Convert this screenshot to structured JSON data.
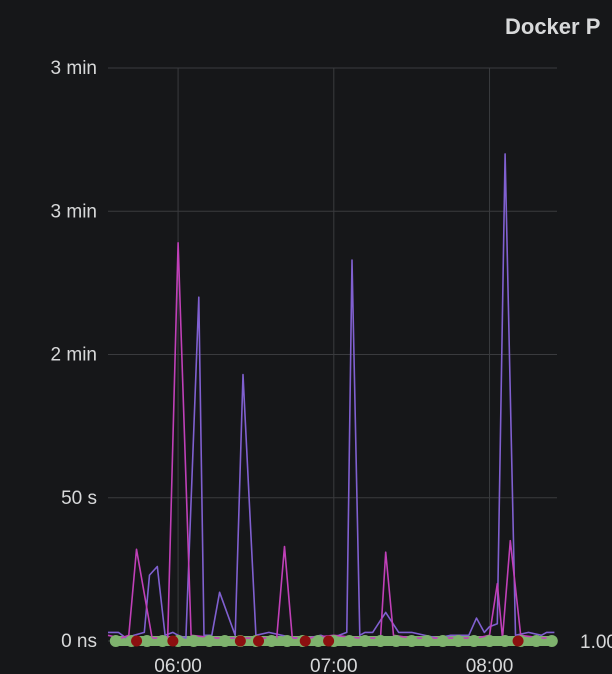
{
  "panel": {
    "title": "Docker P"
  },
  "chart_data": {
    "type": "line",
    "title": "Docker P",
    "xlabel": "",
    "ylabel": "",
    "x_ticks": [
      "06:00",
      "07:00",
      "08:00"
    ],
    "y_tick_labels": [
      "0 ns",
      "50 s",
      "2 min",
      "3 min",
      "3 min"
    ],
    "y_ticks_seconds": [
      0,
      50,
      100,
      150,
      200
    ],
    "ylim": [
      0,
      200
    ],
    "x_range_minutes": [
      "05:33",
      "08:26"
    ],
    "right_axis_label": "1.00",
    "grid": true,
    "series": [
      {
        "color": "#8060d0",
        "x": [
          "05:33",
          "05:37",
          "05:40",
          "05:43",
          "05:47",
          "05:49",
          "05:52",
          "05:55",
          "05:58",
          "06:00",
          "06:03",
          "06:08",
          "06:10",
          "06:13",
          "06:16",
          "06:22",
          "06:25",
          "06:30",
          "06:35",
          "06:40",
          "06:45",
          "06:50",
          "06:55",
          "06:58",
          "07:02",
          "07:05",
          "07:07",
          "07:10",
          "07:12",
          "07:15",
          "07:20",
          "07:25",
          "07:30",
          "07:35",
          "07:40",
          "07:45",
          "07:50",
          "07:52",
          "07:55",
          "07:58",
          "08:00",
          "08:03",
          "08:06",
          "08:10",
          "08:15",
          "08:20",
          "08:22",
          "08:25"
        ],
        "y": [
          3,
          3,
          1,
          2,
          3,
          23,
          26,
          2,
          3,
          2,
          1,
          120,
          2,
          2,
          17,
          2,
          93,
          2,
          3,
          2,
          1,
          1,
          2,
          1,
          2,
          3,
          133,
          2,
          3,
          3,
          10,
          3,
          3,
          2,
          1,
          2,
          2,
          2,
          8,
          3,
          5,
          6,
          170,
          2,
          3,
          2,
          3,
          3
        ]
      },
      {
        "color": "#c040b8",
        "x": [
          "05:33",
          "05:38",
          "05:41",
          "05:44",
          "05:50",
          "05:53",
          "05:56",
          "06:00",
          "06:05",
          "06:15",
          "06:25",
          "06:30",
          "06:38",
          "06:41",
          "06:44",
          "06:50",
          "07:00",
          "07:10",
          "07:15",
          "07:18",
          "07:20",
          "07:23",
          "07:30",
          "07:45",
          "07:55",
          "08:00",
          "08:03",
          "08:05",
          "08:08",
          "08:12",
          "08:20",
          "08:25"
        ],
        "y": [
          2,
          1,
          2,
          32,
          1,
          1,
          1,
          139,
          2,
          1,
          1,
          1,
          1,
          33,
          1,
          1,
          2,
          1,
          1,
          1,
          31,
          2,
          1,
          1,
          1,
          2,
          20,
          1,
          35,
          2,
          1,
          1
        ]
      },
      {
        "color": "#7eb26d",
        "dots": true,
        "x": [
          "05:36",
          "05:42",
          "05:48",
          "05:54",
          "06:00",
          "06:06",
          "06:12",
          "06:18",
          "06:24",
          "06:30",
          "06:36",
          "06:42",
          "06:48",
          "06:54",
          "07:00",
          "07:06",
          "07:12",
          "07:18",
          "07:24",
          "07:30",
          "07:36",
          "07:42",
          "07:48",
          "07:54",
          "08:00",
          "08:06",
          "08:12",
          "08:18",
          "08:24"
        ],
        "y": [
          0,
          0,
          0,
          0,
          0,
          0,
          0,
          0,
          0,
          0,
          0,
          0,
          0,
          0,
          0,
          0,
          0,
          0,
          0,
          0,
          0,
          0,
          0,
          0,
          0,
          0,
          0,
          0,
          0
        ]
      },
      {
        "color": "#8b1010",
        "dots": true,
        "x": [
          "05:44",
          "05:58",
          "06:24",
          "06:31",
          "06:49",
          "06:58",
          "08:11"
        ],
        "y": [
          0,
          0,
          0,
          0,
          0,
          0,
          0
        ]
      }
    ]
  }
}
